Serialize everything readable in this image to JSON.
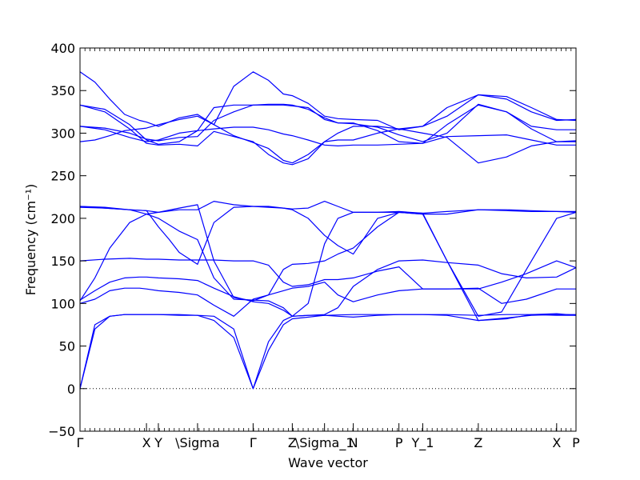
{
  "chart_data": {
    "type": "line",
    "xlabel": "Wave vector",
    "ylabel": "Frequency (cm⁻¹)",
    "ylim": [
      -50,
      400
    ],
    "xlim": [
      0,
      1
    ],
    "y_ticks": [
      -50,
      0,
      50,
      100,
      150,
      200,
      250,
      300,
      350,
      400
    ],
    "x_ticks": [
      {
        "label": "Γ",
        "x": 0.0
      },
      {
        "label": "X",
        "x": 0.134
      },
      {
        "label": "Y",
        "x": 0.158
      },
      {
        "label": "\\Sigma",
        "x": 0.237
      },
      {
        "label": "Γ",
        "x": 0.349
      },
      {
        "label": "Z",
        "x": 0.428
      },
      {
        "label": "\\Sigma_1",
        "x": 0.493
      },
      {
        "label": "N",
        "x": 0.551
      },
      {
        "label": "P",
        "x": 0.643
      },
      {
        "label": "Y_1",
        "x": 0.691
      },
      {
        "label": "Z",
        "x": 0.803
      },
      {
        "label": "X",
        "x": 0.961
      },
      {
        "label": "P",
        "x": 1.0
      }
    ],
    "grid": false,
    "zero_line": true,
    "line_color": "#0000ff",
    "series": [
      {
        "x": [
          0,
          0.03,
          0.06,
          0.09,
          0.12,
          0.134,
          0.158,
          0.2,
          0.237,
          0.27,
          0.31,
          0.349,
          0.38,
          0.41,
          0.428,
          0.493,
          0.551,
          0.6,
          0.643,
          0.691,
          0.74,
          0.803,
          0.86,
          0.91,
          0.961,
          1.0
        ],
        "y": [
          0,
          75,
          85,
          87,
          87,
          87,
          87,
          86,
          86,
          85,
          70,
          0,
          45,
          75,
          82,
          86,
          87,
          87,
          87,
          87,
          86,
          80,
          83,
          86,
          87,
          87
        ]
      },
      {
        "x": [
          0,
          0.03,
          0.06,
          0.09,
          0.12,
          0.134,
          0.158,
          0.2,
          0.237,
          0.27,
          0.31,
          0.349,
          0.38,
          0.41,
          0.428,
          0.46,
          0.493,
          0.52,
          0.551,
          0.6,
          0.643,
          0.691,
          0.74,
          0.803,
          0.86,
          0.91,
          0.961,
          1.0
        ],
        "y": [
          0,
          70,
          85,
          87,
          87,
          87,
          87,
          87,
          86,
          80,
          60,
          0,
          55,
          80,
          85,
          86,
          86,
          85,
          84,
          86,
          87,
          87,
          87,
          86,
          87,
          87,
          86,
          86
        ]
      },
      {
        "x": [
          0,
          0.03,
          0.06,
          0.09,
          0.12,
          0.134,
          0.158,
          0.2,
          0.237,
          0.27,
          0.31,
          0.349,
          0.38,
          0.41,
          0.428,
          0.46,
          0.493,
          0.52,
          0.551,
          0.6,
          0.643,
          0.691,
          0.74,
          0.803,
          0.85,
          0.9,
          0.961,
          1.0
        ],
        "y": [
          100,
          105,
          115,
          118,
          118,
          117,
          115,
          113,
          110,
          98,
          85,
          105,
          110,
          115,
          118,
          120,
          125,
          110,
          102,
          110,
          115,
          117,
          117,
          118,
          100,
          105,
          117,
          117
        ]
      },
      {
        "x": [
          0,
          0.03,
          0.06,
          0.09,
          0.12,
          0.134,
          0.158,
          0.2,
          0.237,
          0.27,
          0.31,
          0.349,
          0.38,
          0.41,
          0.428,
          0.46,
          0.493,
          0.52,
          0.551,
          0.6,
          0.643,
          0.691,
          0.74,
          0.803,
          0.85,
          0.9,
          0.961,
          1.0
        ],
        "y": [
          104,
          115,
          125,
          130,
          131,
          131,
          130,
          129,
          127,
          118,
          108,
          102,
          100,
          92,
          85,
          86,
          87,
          95,
          120,
          140,
          150,
          151,
          148,
          145,
          135,
          130,
          131,
          142
        ]
      },
      {
        "x": [
          0,
          0.05,
          0.1,
          0.134,
          0.158,
          0.2,
          0.237,
          0.27,
          0.31,
          0.349,
          0.38,
          0.41,
          0.428,
          0.46,
          0.493,
          0.52,
          0.551,
          0.6,
          0.643,
          0.691,
          0.74,
          0.803,
          0.85,
          0.9,
          0.961,
          1.0
        ],
        "y": [
          150,
          152,
          153,
          152,
          152,
          151,
          151,
          151,
          150,
          150,
          145,
          125,
          120,
          122,
          128,
          128,
          130,
          138,
          143,
          117,
          117,
          117,
          125,
          135,
          150,
          142
        ]
      },
      {
        "x": [
          0,
          0.03,
          0.06,
          0.1,
          0.134,
          0.158,
          0.2,
          0.237,
          0.27,
          0.31,
          0.349,
          0.38,
          0.41,
          0.428,
          0.46,
          0.493,
          0.52,
          0.551,
          0.6,
          0.643,
          0.691,
          0.74,
          0.803,
          0.85,
          0.9,
          0.961,
          1.0
        ],
        "y": [
          103,
          130,
          165,
          195,
          205,
          207,
          212,
          216,
          150,
          107,
          103,
          110,
          140,
          146,
          147,
          150,
          158,
          165,
          190,
          207,
          205,
          150,
          85,
          90,
          140,
          200,
          207
        ]
      },
      {
        "x": [
          0,
          0.05,
          0.1,
          0.134,
          0.158,
          0.18,
          0.2,
          0.237,
          0.27,
          0.31,
          0.349,
          0.38,
          0.41,
          0.428,
          0.46,
          0.493,
          0.52,
          0.551,
          0.6,
          0.643,
          0.691,
          0.74,
          0.803,
          0.86,
          0.91,
          0.961,
          1.0
        ],
        "y": [
          214,
          212,
          210,
          209,
          190,
          175,
          160,
          146,
          195,
          213,
          214,
          214,
          212,
          210,
          200,
          180,
          168,
          158,
          200,
          207,
          205,
          205,
          210,
          210,
          209,
          208,
          208
        ]
      },
      {
        "x": [
          0,
          0.05,
          0.1,
          0.134,
          0.158,
          0.2,
          0.237,
          0.27,
          0.31,
          0.349,
          0.38,
          0.41,
          0.428,
          0.46,
          0.493,
          0.52,
          0.551,
          0.6,
          0.643,
          0.691,
          0.74,
          0.803,
          0.86,
          0.91,
          0.961,
          1.0
        ],
        "y": [
          214,
          213,
          210,
          205,
          200,
          185,
          175,
          130,
          105,
          104,
          103,
          95,
          85,
          100,
          170,
          200,
          207,
          207,
          208,
          206,
          150,
          80,
          82,
          87,
          88,
          86
        ]
      },
      {
        "x": [
          0,
          0.05,
          0.1,
          0.134,
          0.158,
          0.2,
          0.237,
          0.27,
          0.31,
          0.349,
          0.38,
          0.41,
          0.428,
          0.46,
          0.493,
          0.52,
          0.551,
          0.6,
          0.643,
          0.691,
          0.74,
          0.803,
          0.86,
          0.91,
          0.961,
          1.0
        ],
        "y": [
          213,
          212,
          210,
          209,
          207,
          210,
          210,
          220,
          216,
          214,
          213,
          212,
          211,
          212,
          220,
          214,
          207,
          207,
          207,
          206,
          208,
          210,
          209,
          208,
          208,
          207
        ]
      },
      {
        "x": [
          0,
          0.03,
          0.06,
          0.09,
          0.12,
          0.134,
          0.158,
          0.2,
          0.237,
          0.27,
          0.31,
          0.349,
          0.38,
          0.41,
          0.428,
          0.46,
          0.493,
          0.52,
          0.551,
          0.6,
          0.643,
          0.691,
          0.74,
          0.803,
          0.86,
          0.91,
          0.961,
          1.0
        ],
        "y": [
          290,
          292,
          297,
          303,
          305,
          306,
          310,
          316,
          320,
          310,
          297,
          289,
          282,
          268,
          265,
          275,
          290,
          300,
          308,
          308,
          305,
          300,
          295,
          265,
          272,
          285,
          290,
          291
        ]
      },
      {
        "x": [
          0,
          0.05,
          0.1,
          0.134,
          0.158,
          0.2,
          0.237,
          0.27,
          0.31,
          0.349,
          0.38,
          0.41,
          0.428,
          0.46,
          0.493,
          0.52,
          0.551,
          0.6,
          0.643,
          0.691,
          0.74,
          0.803,
          0.86,
          0.91,
          0.961,
          1.0
        ],
        "y": [
          308,
          306,
          300,
          293,
          291,
          295,
          296,
          315,
          325,
          333,
          334,
          334,
          333,
          328,
          318,
          312,
          311,
          307,
          298,
          290,
          300,
          334,
          325,
          308,
          304,
          304
        ]
      },
      {
        "x": [
          0,
          0.05,
          0.1,
          0.134,
          0.158,
          0.2,
          0.237,
          0.27,
          0.31,
          0.349,
          0.38,
          0.41,
          0.428,
          0.46,
          0.493,
          0.52,
          0.551,
          0.6,
          0.643,
          0.691,
          0.74,
          0.803,
          0.86,
          0.91,
          0.961,
          1.0
        ],
        "y": [
          308,
          304,
          295,
          290,
          292,
          300,
          303,
          305,
          307,
          307,
          304,
          299,
          297,
          292,
          286,
          285,
          286,
          286,
          287,
          288,
          296,
          297,
          298,
          292,
          286,
          286
        ]
      },
      {
        "x": [
          0,
          0.05,
          0.1,
          0.134,
          0.158,
          0.2,
          0.237,
          0.27,
          0.31,
          0.349,
          0.38,
          0.41,
          0.428,
          0.46,
          0.493,
          0.52,
          0.551,
          0.6,
          0.643,
          0.691,
          0.74,
          0.803,
          0.86,
          0.91,
          0.961,
          1.0
        ],
        "y": [
          333,
          328,
          310,
          292,
          287,
          290,
          303,
          330,
          333,
          333,
          333,
          333,
          332,
          330,
          316,
          312,
          312,
          303,
          290,
          288,
          310,
          333,
          325,
          305,
          290,
          290
        ]
      },
      {
        "x": [
          0,
          0.05,
          0.1,
          0.134,
          0.158,
          0.2,
          0.237,
          0.27,
          0.31,
          0.349,
          0.38,
          0.41,
          0.428,
          0.46,
          0.493,
          0.52,
          0.551,
          0.6,
          0.643,
          0.691,
          0.74,
          0.803,
          0.86,
          0.91,
          0.961,
          1.0
        ],
        "y": [
          333,
          325,
          305,
          288,
          286,
          287,
          285,
          302,
          296,
          290,
          275,
          265,
          263,
          270,
          290,
          292,
          292,
          300,
          305,
          308,
          320,
          345,
          343,
          330,
          316,
          315
        ]
      },
      {
        "x": [
          0,
          0.03,
          0.06,
          0.09,
          0.12,
          0.134,
          0.158,
          0.2,
          0.237,
          0.27,
          0.31,
          0.349,
          0.38,
          0.41,
          0.428,
          0.46,
          0.493,
          0.52,
          0.551,
          0.6,
          0.643,
          0.691,
          0.74,
          0.803,
          0.86,
          0.91,
          0.961,
          1.0
        ],
        "y": [
          372,
          360,
          340,
          322,
          315,
          313,
          308,
          318,
          322,
          310,
          355,
          372,
          362,
          346,
          344,
          335,
          320,
          317,
          316,
          315,
          304,
          308,
          330,
          345,
          340,
          325,
          315,
          316
        ]
      }
    ]
  }
}
